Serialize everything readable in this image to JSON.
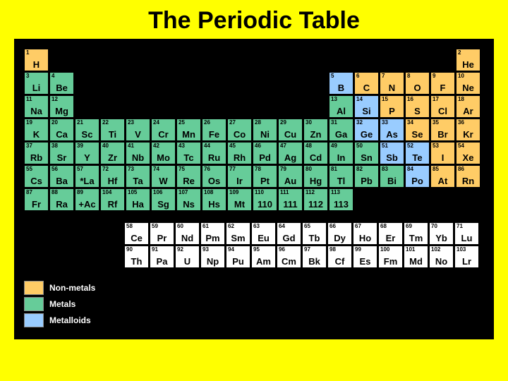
{
  "title": "The Periodic Table",
  "colors": {
    "page_bg": "#ffff00",
    "board_bg": "#000000",
    "nonmetal": "#ffcc66",
    "metal": "#66cc99",
    "metalloid": "#99ccff",
    "fblock": "#ffffff",
    "cell_border": "#000000",
    "title_color": "#000000"
  },
  "cell": {
    "w": 35,
    "h": 32,
    "gap": 1,
    "cols": 18,
    "rows": 7
  },
  "legend": [
    {
      "color_key": "nonmetal",
      "label": "Non-metals"
    },
    {
      "color_key": "metal",
      "label": "Metals"
    },
    {
      "color_key": "metalloid",
      "label": "Metalloids"
    }
  ],
  "main": [
    {
      "z": 1,
      "sym": "H",
      "row": 1,
      "col": 1,
      "cat": "nonmetal"
    },
    {
      "z": 2,
      "sym": "He",
      "row": 1,
      "col": 18,
      "cat": "nonmetal"
    },
    {
      "z": 3,
      "sym": "Li",
      "row": 2,
      "col": 1,
      "cat": "metal"
    },
    {
      "z": 4,
      "sym": "Be",
      "row": 2,
      "col": 2,
      "cat": "metal"
    },
    {
      "z": 5,
      "sym": "B",
      "row": 2,
      "col": 13,
      "cat": "metalloid"
    },
    {
      "z": 6,
      "sym": "C",
      "row": 2,
      "col": 14,
      "cat": "nonmetal"
    },
    {
      "z": 7,
      "sym": "N",
      "row": 2,
      "col": 15,
      "cat": "nonmetal"
    },
    {
      "z": 8,
      "sym": "O",
      "row": 2,
      "col": 16,
      "cat": "nonmetal"
    },
    {
      "z": 9,
      "sym": "F",
      "row": 2,
      "col": 17,
      "cat": "nonmetal"
    },
    {
      "z": 10,
      "sym": "Ne",
      "row": 2,
      "col": 18,
      "cat": "nonmetal"
    },
    {
      "z": 11,
      "sym": "Na",
      "row": 3,
      "col": 1,
      "cat": "metal"
    },
    {
      "z": 12,
      "sym": "Mg",
      "row": 3,
      "col": 2,
      "cat": "metal"
    },
    {
      "z": 13,
      "sym": "Al",
      "row": 3,
      "col": 13,
      "cat": "metal"
    },
    {
      "z": 14,
      "sym": "Si",
      "row": 3,
      "col": 14,
      "cat": "metalloid"
    },
    {
      "z": 15,
      "sym": "P",
      "row": 3,
      "col": 15,
      "cat": "nonmetal"
    },
    {
      "z": 16,
      "sym": "S",
      "row": 3,
      "col": 16,
      "cat": "nonmetal"
    },
    {
      "z": 17,
      "sym": "Cl",
      "row": 3,
      "col": 17,
      "cat": "nonmetal"
    },
    {
      "z": 18,
      "sym": "Ar",
      "row": 3,
      "col": 18,
      "cat": "nonmetal"
    },
    {
      "z": 19,
      "sym": "K",
      "row": 4,
      "col": 1,
      "cat": "metal"
    },
    {
      "z": 20,
      "sym": "Ca",
      "row": 4,
      "col": 2,
      "cat": "metal"
    },
    {
      "z": 21,
      "sym": "Sc",
      "row": 4,
      "col": 3,
      "cat": "metal"
    },
    {
      "z": 22,
      "sym": "Ti",
      "row": 4,
      "col": 4,
      "cat": "metal"
    },
    {
      "z": 23,
      "sym": "V",
      "row": 4,
      "col": 5,
      "cat": "metal"
    },
    {
      "z": 24,
      "sym": "Cr",
      "row": 4,
      "col": 6,
      "cat": "metal"
    },
    {
      "z": 25,
      "sym": "Mn",
      "row": 4,
      "col": 7,
      "cat": "metal"
    },
    {
      "z": 26,
      "sym": "Fe",
      "row": 4,
      "col": 8,
      "cat": "metal"
    },
    {
      "z": 27,
      "sym": "Co",
      "row": 4,
      "col": 9,
      "cat": "metal"
    },
    {
      "z": 28,
      "sym": "Ni",
      "row": 4,
      "col": 10,
      "cat": "metal"
    },
    {
      "z": 29,
      "sym": "Cu",
      "row": 4,
      "col": 11,
      "cat": "metal"
    },
    {
      "z": 30,
      "sym": "Zn",
      "row": 4,
      "col": 12,
      "cat": "metal"
    },
    {
      "z": 31,
      "sym": "Ga",
      "row": 4,
      "col": 13,
      "cat": "metal"
    },
    {
      "z": 32,
      "sym": "Ge",
      "row": 4,
      "col": 14,
      "cat": "metalloid"
    },
    {
      "z": 33,
      "sym": "As",
      "row": 4,
      "col": 15,
      "cat": "metalloid"
    },
    {
      "z": 34,
      "sym": "Se",
      "row": 4,
      "col": 16,
      "cat": "nonmetal"
    },
    {
      "z": 35,
      "sym": "Br",
      "row": 4,
      "col": 17,
      "cat": "nonmetal"
    },
    {
      "z": 36,
      "sym": "Kr",
      "row": 4,
      "col": 18,
      "cat": "nonmetal"
    },
    {
      "z": 37,
      "sym": "Rb",
      "row": 5,
      "col": 1,
      "cat": "metal"
    },
    {
      "z": 38,
      "sym": "Sr",
      "row": 5,
      "col": 2,
      "cat": "metal"
    },
    {
      "z": 39,
      "sym": "Y",
      "row": 5,
      "col": 3,
      "cat": "metal"
    },
    {
      "z": 40,
      "sym": "Zr",
      "row": 5,
      "col": 4,
      "cat": "metal"
    },
    {
      "z": 41,
      "sym": "Nb",
      "row": 5,
      "col": 5,
      "cat": "metal"
    },
    {
      "z": 42,
      "sym": "Mo",
      "row": 5,
      "col": 6,
      "cat": "metal"
    },
    {
      "z": 43,
      "sym": "Tc",
      "row": 5,
      "col": 7,
      "cat": "metal"
    },
    {
      "z": 44,
      "sym": "Ru",
      "row": 5,
      "col": 8,
      "cat": "metal"
    },
    {
      "z": 45,
      "sym": "Rh",
      "row": 5,
      "col": 9,
      "cat": "metal"
    },
    {
      "z": 46,
      "sym": "Pd",
      "row": 5,
      "col": 10,
      "cat": "metal"
    },
    {
      "z": 47,
      "sym": "Ag",
      "row": 5,
      "col": 11,
      "cat": "metal"
    },
    {
      "z": 48,
      "sym": "Cd",
      "row": 5,
      "col": 12,
      "cat": "metal"
    },
    {
      "z": 49,
      "sym": "In",
      "row": 5,
      "col": 13,
      "cat": "metal"
    },
    {
      "z": 50,
      "sym": "Sn",
      "row": 5,
      "col": 14,
      "cat": "metal"
    },
    {
      "z": 51,
      "sym": "Sb",
      "row": 5,
      "col": 15,
      "cat": "metalloid"
    },
    {
      "z": 52,
      "sym": "Te",
      "row": 5,
      "col": 16,
      "cat": "metalloid"
    },
    {
      "z": 53,
      "sym": "I",
      "row": 5,
      "col": 17,
      "cat": "nonmetal"
    },
    {
      "z": 54,
      "sym": "Xe",
      "row": 5,
      "col": 18,
      "cat": "nonmetal"
    },
    {
      "z": 55,
      "sym": "Cs",
      "row": 6,
      "col": 1,
      "cat": "metal"
    },
    {
      "z": 56,
      "sym": "Ba",
      "row": 6,
      "col": 2,
      "cat": "metal"
    },
    {
      "z": 57,
      "sym": "*La",
      "row": 6,
      "col": 3,
      "cat": "metal"
    },
    {
      "z": 72,
      "sym": "Hf",
      "row": 6,
      "col": 4,
      "cat": "metal"
    },
    {
      "z": 73,
      "sym": "Ta",
      "row": 6,
      "col": 5,
      "cat": "metal"
    },
    {
      "z": 74,
      "sym": "W",
      "row": 6,
      "col": 6,
      "cat": "metal"
    },
    {
      "z": 75,
      "sym": "Re",
      "row": 6,
      "col": 7,
      "cat": "metal"
    },
    {
      "z": 76,
      "sym": "Os",
      "row": 6,
      "col": 8,
      "cat": "metal"
    },
    {
      "z": 77,
      "sym": "Ir",
      "row": 6,
      "col": 9,
      "cat": "metal"
    },
    {
      "z": 78,
      "sym": "Pt",
      "row": 6,
      "col": 10,
      "cat": "metal"
    },
    {
      "z": 79,
      "sym": "Au",
      "row": 6,
      "col": 11,
      "cat": "metal"
    },
    {
      "z": 80,
      "sym": "Hg",
      "row": 6,
      "col": 12,
      "cat": "metal"
    },
    {
      "z": 81,
      "sym": "Tl",
      "row": 6,
      "col": 13,
      "cat": "metal"
    },
    {
      "z": 82,
      "sym": "Pb",
      "row": 6,
      "col": 14,
      "cat": "metal"
    },
    {
      "z": 83,
      "sym": "Bi",
      "row": 6,
      "col": 15,
      "cat": "metal"
    },
    {
      "z": 84,
      "sym": "Po",
      "row": 6,
      "col": 16,
      "cat": "metalloid"
    },
    {
      "z": 85,
      "sym": "At",
      "row": 6,
      "col": 17,
      "cat": "nonmetal"
    },
    {
      "z": 86,
      "sym": "Rn",
      "row": 6,
      "col": 18,
      "cat": "nonmetal"
    },
    {
      "z": 87,
      "sym": "Fr",
      "row": 7,
      "col": 1,
      "cat": "metal"
    },
    {
      "z": 88,
      "sym": "Ra",
      "row": 7,
      "col": 2,
      "cat": "metal"
    },
    {
      "z": 89,
      "sym": "+Ac",
      "row": 7,
      "col": 3,
      "cat": "metal"
    },
    {
      "z": 104,
      "sym": "Rf",
      "row": 7,
      "col": 4,
      "cat": "metal"
    },
    {
      "z": 105,
      "sym": "Ha",
      "row": 7,
      "col": 5,
      "cat": "metal"
    },
    {
      "z": 106,
      "sym": "Sg",
      "row": 7,
      "col": 6,
      "cat": "metal"
    },
    {
      "z": 107,
      "sym": "Ns",
      "row": 7,
      "col": 7,
      "cat": "metal"
    },
    {
      "z": 108,
      "sym": "Hs",
      "row": 7,
      "col": 8,
      "cat": "metal"
    },
    {
      "z": 109,
      "sym": "Mt",
      "row": 7,
      "col": 9,
      "cat": "metal"
    },
    {
      "z": 110,
      "sym": "110",
      "row": 7,
      "col": 10,
      "cat": "metal"
    },
    {
      "z": 111,
      "sym": "111",
      "row": 7,
      "col": 11,
      "cat": "metal"
    },
    {
      "z": 112,
      "sym": "112",
      "row": 7,
      "col": 12,
      "cat": "metal"
    },
    {
      "z": 113,
      "sym": "113",
      "row": 7,
      "col": 13,
      "cat": "metal"
    }
  ],
  "fblock": [
    {
      "z": 58,
      "sym": "Ce"
    },
    {
      "z": 59,
      "sym": "Pr"
    },
    {
      "z": 60,
      "sym": "Nd"
    },
    {
      "z": 61,
      "sym": "Pm"
    },
    {
      "z": 62,
      "sym": "Sm"
    },
    {
      "z": 63,
      "sym": "Eu"
    },
    {
      "z": 64,
      "sym": "Gd"
    },
    {
      "z": 65,
      "sym": "Tb"
    },
    {
      "z": 66,
      "sym": "Dy"
    },
    {
      "z": 67,
      "sym": "Ho"
    },
    {
      "z": 68,
      "sym": "Er"
    },
    {
      "z": 69,
      "sym": "Tm"
    },
    {
      "z": 70,
      "sym": "Yb"
    },
    {
      "z": 71,
      "sym": "Lu"
    },
    {
      "z": 90,
      "sym": "Th"
    },
    {
      "z": 91,
      "sym": "Pa"
    },
    {
      "z": 92,
      "sym": "U"
    },
    {
      "z": 93,
      "sym": "Np"
    },
    {
      "z": 94,
      "sym": "Pu"
    },
    {
      "z": 95,
      "sym": "Am"
    },
    {
      "z": 96,
      "sym": "Cm"
    },
    {
      "z": 97,
      "sym": "Bk"
    },
    {
      "z": 98,
      "sym": "Cf"
    },
    {
      "z": 99,
      "sym": "Es"
    },
    {
      "z": 100,
      "sym": "Fm"
    },
    {
      "z": 101,
      "sym": "Md"
    },
    {
      "z": 102,
      "sym": "No"
    },
    {
      "z": 103,
      "sym": "Lr"
    }
  ]
}
